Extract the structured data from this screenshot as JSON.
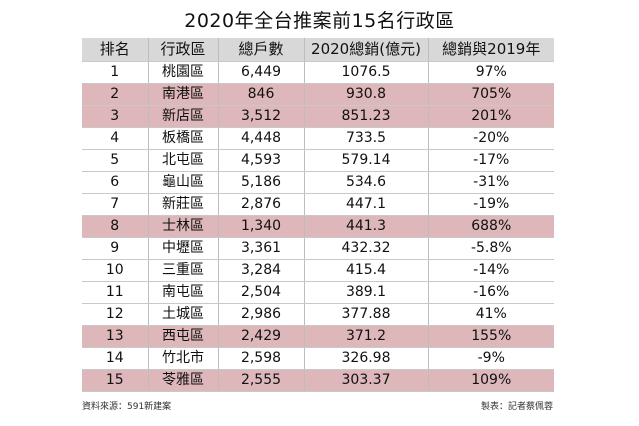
{
  "title": "2020年全台推案前15名行政區",
  "highlight_color": "#ddb7b9",
  "header_color": "#d8d8d8",
  "columns": [
    "排名",
    "行政區",
    "總戶數",
    "2020總銷(億元)",
    "總銷與2019年"
  ],
  "rows": [
    {
      "rank": "1",
      "district": "桃園區",
      "units": "6,449",
      "sales": "1076.5",
      "change": "97%",
      "highlight": false
    },
    {
      "rank": "2",
      "district": "南港區",
      "units": "846",
      "sales": "930.8",
      "change": "705%",
      "highlight": true
    },
    {
      "rank": "3",
      "district": "新店區",
      "units": "3,512",
      "sales": "851.23",
      "change": "201%",
      "highlight": true
    },
    {
      "rank": "4",
      "district": "板橋區",
      "units": "4,448",
      "sales": "733.5",
      "change": "-20%",
      "highlight": false
    },
    {
      "rank": "5",
      "district": "北屯區",
      "units": "4,593",
      "sales": "579.14",
      "change": "-17%",
      "highlight": false
    },
    {
      "rank": "6",
      "district": "龜山區",
      "units": "5,186",
      "sales": "534.6",
      "change": "-31%",
      "highlight": false
    },
    {
      "rank": "7",
      "district": "新莊區",
      "units": "2,876",
      "sales": "447.1",
      "change": "-19%",
      "highlight": false
    },
    {
      "rank": "8",
      "district": "士林區",
      "units": "1,340",
      "sales": "441.3",
      "change": "688%",
      "highlight": true
    },
    {
      "rank": "9",
      "district": "中壢區",
      "units": "3,361",
      "sales": "432.32",
      "change": "-5.8%",
      "highlight": false
    },
    {
      "rank": "10",
      "district": "三重區",
      "units": "3,284",
      "sales": "415.4",
      "change": "-14%",
      "highlight": false
    },
    {
      "rank": "11",
      "district": "南屯區",
      "units": "2,504",
      "sales": "389.1",
      "change": "-16%",
      "highlight": false
    },
    {
      "rank": "12",
      "district": "土城區",
      "units": "2,986",
      "sales": "377.88",
      "change": "41%",
      "highlight": false
    },
    {
      "rank": "13",
      "district": "西屯區",
      "units": "2,429",
      "sales": "371.2",
      "change": "155%",
      "highlight": true
    },
    {
      "rank": "14",
      "district": "竹北市",
      "units": "2,598",
      "sales": "326.98",
      "change": "-9%",
      "highlight": false
    },
    {
      "rank": "15",
      "district": "苓雅區",
      "units": "2,555",
      "sales": "303.37",
      "change": "109%",
      "highlight": true
    }
  ],
  "footer": {
    "source": "資料來源：591新建案",
    "credit": "製表：記者蔡佩蓉"
  }
}
